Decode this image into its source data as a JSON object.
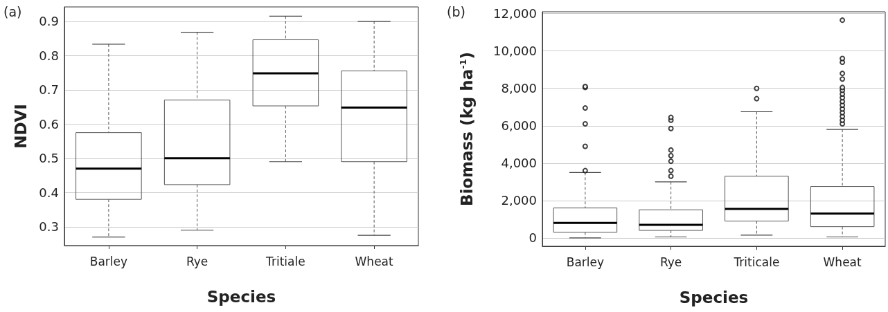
{
  "chart_data": [
    {
      "type": "box",
      "title": "(a)",
      "xlabel": "Species",
      "ylabel": "NDVI",
      "categories": [
        "Barley",
        "Rye",
        "Tritiale",
        "Wheat"
      ],
      "boxes": [
        {
          "low": 0.27,
          "q1": 0.38,
          "median": 0.47,
          "q3": 0.575,
          "high": 0.833
        },
        {
          "low": 0.29,
          "q1": 0.423,
          "median": 0.5,
          "q3": 0.67,
          "high": 0.868
        },
        {
          "low": 0.49,
          "q1": 0.653,
          "median": 0.748,
          "q3": 0.846,
          "high": 0.915
        },
        {
          "low": 0.275,
          "q1": 0.49,
          "median": 0.648,
          "q3": 0.755,
          "high": 0.9
        }
      ],
      "ylim": [
        0.245,
        0.942
      ],
      "yticks": [
        0.3,
        0.4,
        0.5,
        0.6,
        0.7,
        0.8,
        0.9
      ],
      "grid": "y",
      "line_style": "dashed"
    },
    {
      "type": "box",
      "title": "(b)",
      "xlabel": "Species",
      "ylabel": "Biomass (kg ha$^{-1}$)",
      "categories": [
        "Barley",
        "Rye",
        "Triticale",
        "Wheat"
      ],
      "boxes": [
        {
          "low": 0,
          "q1": 300,
          "median": 800,
          "q3": 1600,
          "high": 3500,
          "outliers": [
            3600,
            4900,
            6100,
            6950,
            8050,
            8100
          ]
        },
        {
          "low": 50,
          "q1": 400,
          "median": 700,
          "q3": 1500,
          "high": 3000,
          "outliers": [
            3300,
            3600,
            4100,
            4400,
            4700,
            5850,
            6300,
            6450
          ]
        },
        {
          "low": 150,
          "q1": 900,
          "median": 1550,
          "q3": 3300,
          "high": 6750,
          "outliers": [
            7450,
            8000
          ]
        },
        {
          "low": 50,
          "q1": 600,
          "median": 1300,
          "q3": 2750,
          "high": 5800,
          "outliers": [
            6100,
            6300,
            6500,
            6700,
            6900,
            7100,
            7300,
            7500,
            7700,
            7900,
            8050,
            8500,
            8800,
            9400,
            9600,
            11650
          ]
        }
      ],
      "ylim": [
        -450,
        12100
      ],
      "yticks": [
        {
          "value": 0,
          "label": "0"
        },
        {
          "value": 2000,
          "label": "2,000"
        },
        {
          "value": 4000,
          "label": "4,000"
        },
        {
          "value": 6000,
          "label": "6,000"
        },
        {
          "value": 8000,
          "label": "8,000"
        },
        {
          "value": 10000,
          "label": "10,000"
        },
        {
          "value": 12000,
          "label": "12,000"
        }
      ],
      "grid": "y",
      "line_style": "dashed",
      "marker": "circle"
    }
  ]
}
